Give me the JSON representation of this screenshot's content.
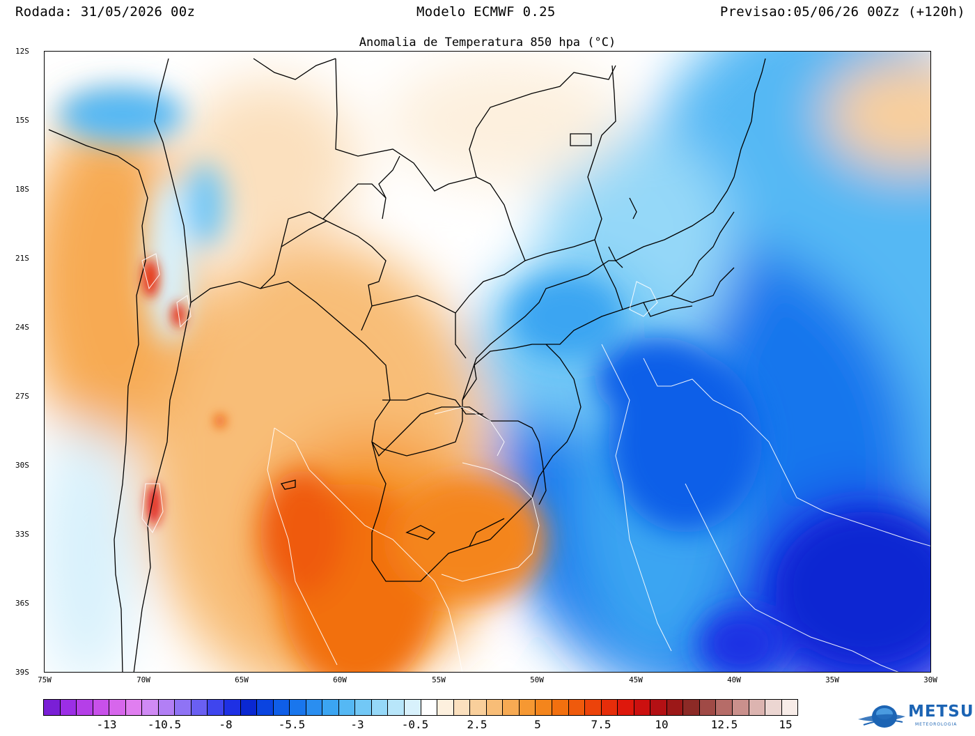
{
  "header": {
    "run": "Rodada: 31/05/2026 00z",
    "model": "Modelo ECMWF 0.25",
    "forecast": "Previsao:05/06/26 00Zz (+120h)"
  },
  "map": {
    "title": "Anomalia de Temperatura 850 hpa (°C)",
    "lat_labels": [
      "12S",
      "15S",
      "18S",
      "21S",
      "24S",
      "27S",
      "30S",
      "33S",
      "36S",
      "39S"
    ],
    "lon_labels": [
      "75W",
      "70W",
      "65W",
      "60W",
      "55W",
      "50W",
      "45W",
      "40W",
      "35W",
      "30W"
    ],
    "extent": {
      "lon_min": -75,
      "lon_max": -30,
      "lat_min": -39,
      "lat_max": -12
    }
  },
  "colorbar": {
    "colors": [
      "#7a1fd6",
      "#9c2ee6",
      "#b53fe8",
      "#c850ea",
      "#d766ec",
      "#e07ef0",
      "#d08af5",
      "#b27ff5",
      "#8f73f5",
      "#6a5ff2",
      "#3f45ee",
      "#1e30e4",
      "#0a28d2",
      "#0a44e0",
      "#0f5ee8",
      "#1976ed",
      "#2a8ef0",
      "#3ba5f2",
      "#55b8f4",
      "#72c8f6",
      "#95d8f8",
      "#b8e6fa",
      "#d8f1fc",
      "#ffffff",
      "#fdf0de",
      "#fbe0be",
      "#f9cf9b",
      "#f8bd77",
      "#f7aa53",
      "#f69832",
      "#f4851c",
      "#f2700f",
      "#ef5a0c",
      "#ec430a",
      "#e62d0a",
      "#de180c",
      "#cc100f",
      "#b41014",
      "#9c1818",
      "#8c2a26",
      "#a04a46",
      "#b66c68",
      "#ca908c",
      "#dcb4b0",
      "#ecd6d2",
      "#f8ece8"
    ],
    "labels": [
      "-13",
      "-10.5",
      "-8",
      "-5.5",
      "-3",
      "-0.5",
      "2.5",
      "5",
      "7.5",
      "10",
      "12.5",
      "15"
    ]
  },
  "logo": {
    "name": "METSUL",
    "sub": "METEOROLOGIA"
  }
}
